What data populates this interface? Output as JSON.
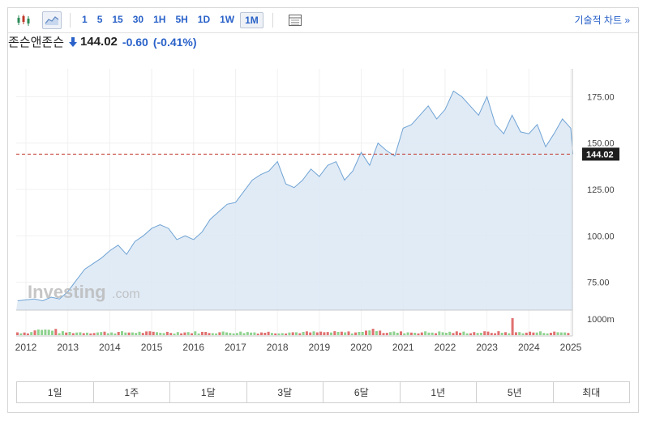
{
  "toolbar": {
    "intervals": [
      "1",
      "5",
      "15",
      "30",
      "1H",
      "5H",
      "1D",
      "1W",
      "1M"
    ],
    "active_interval": "1M",
    "tech_chart_label": "기술적 차트 »"
  },
  "instrument": {
    "name": "존슨앤존슨",
    "price": "144.02",
    "change": "-0.60",
    "change_pct": "(-0.41%)"
  },
  "watermark": {
    "brand": "Investing",
    "suffix": ".com"
  },
  "colors": {
    "line": "#6fa3d4",
    "fill": "#dce8f4",
    "ref_line": "#c0392b",
    "accent": "#2a62c9",
    "vol_up": "#8fd18f",
    "vol_down": "#e07070"
  },
  "periods": [
    "1일",
    "1주",
    "1달",
    "3달",
    "6달",
    "1년",
    "5년",
    "최대"
  ],
  "chart_data": {
    "type": "area",
    "x_ticks": [
      "2012",
      "2013",
      "2014",
      "2015",
      "2016",
      "2017",
      "2018",
      "2019",
      "2020",
      "2021",
      "2022",
      "2023",
      "2024",
      "2025"
    ],
    "y_ticks": [
      "75.00",
      "100.00",
      "125.00",
      "150.00",
      "175.00"
    ],
    "ylim": [
      60,
      190
    ],
    "xlim": [
      2012.0,
      2025.0
    ],
    "last_price_label": "144.02",
    "last_price": 144.02,
    "volume_label": "1000m",
    "series": [
      {
        "values": [
          [
            2011.8,
            65
          ],
          [
            2012.0,
            65.5
          ],
          [
            2012.2,
            66
          ],
          [
            2012.4,
            65
          ],
          [
            2012.6,
            67
          ],
          [
            2012.8,
            66
          ],
          [
            2013.0,
            70
          ],
          [
            2013.2,
            76
          ],
          [
            2013.4,
            82
          ],
          [
            2013.6,
            85
          ],
          [
            2013.8,
            88
          ],
          [
            2014.0,
            92
          ],
          [
            2014.2,
            95
          ],
          [
            2014.4,
            90
          ],
          [
            2014.6,
            97
          ],
          [
            2014.8,
            100
          ],
          [
            2015.0,
            104
          ],
          [
            2015.2,
            106
          ],
          [
            2015.4,
            104
          ],
          [
            2015.6,
            98
          ],
          [
            2015.8,
            100
          ],
          [
            2016.0,
            98
          ],
          [
            2016.2,
            102
          ],
          [
            2016.4,
            109
          ],
          [
            2016.6,
            113
          ],
          [
            2016.8,
            117
          ],
          [
            2017.0,
            118
          ],
          [
            2017.2,
            124
          ],
          [
            2017.4,
            130
          ],
          [
            2017.6,
            133
          ],
          [
            2017.8,
            135
          ],
          [
            2018.0,
            140
          ],
          [
            2018.2,
            128
          ],
          [
            2018.4,
            126
          ],
          [
            2018.6,
            130
          ],
          [
            2018.8,
            136
          ],
          [
            2019.0,
            132
          ],
          [
            2019.2,
            138
          ],
          [
            2019.4,
            140
          ],
          [
            2019.6,
            130
          ],
          [
            2019.8,
            135
          ],
          [
            2020.0,
            145
          ],
          [
            2020.2,
            138
          ],
          [
            2020.4,
            150
          ],
          [
            2020.6,
            146
          ],
          [
            2020.8,
            143
          ],
          [
            2021.0,
            158
          ],
          [
            2021.2,
            160
          ],
          [
            2021.4,
            165
          ],
          [
            2021.6,
            170
          ],
          [
            2021.8,
            163
          ],
          [
            2022.0,
            168
          ],
          [
            2022.2,
            178
          ],
          [
            2022.4,
            175
          ],
          [
            2022.6,
            170
          ],
          [
            2022.8,
            165
          ],
          [
            2023.0,
            175
          ],
          [
            2023.2,
            160
          ],
          [
            2023.4,
            155
          ],
          [
            2023.6,
            165
          ],
          [
            2023.8,
            156
          ],
          [
            2024.0,
            155
          ],
          [
            2024.2,
            160
          ],
          [
            2024.4,
            148
          ],
          [
            2024.6,
            155
          ],
          [
            2024.8,
            163
          ],
          [
            2025.0,
            158
          ],
          [
            2025.05,
            144.02
          ]
        ]
      }
    ]
  }
}
